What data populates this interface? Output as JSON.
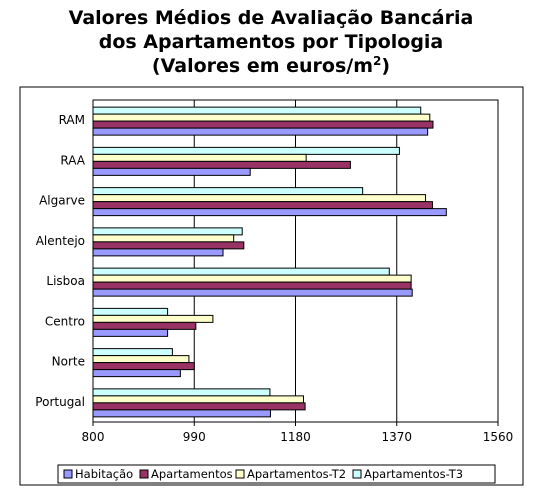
{
  "chart_data": {
    "type": "bar",
    "orientation": "horizontal",
    "title_lines": [
      "Valores Médios de Avaliação Bancária",
      "dos Apartamentos por Tipologia"
    ],
    "title_units_prefix": "(Valores em euros/m",
    "title_units_sup": "2",
    "title_units_suffix": ")",
    "categories": [
      "RAM",
      "RAA",
      "Algarve",
      "Alentejo",
      "Lisboa",
      "Centro",
      "Norte",
      "Portugal"
    ],
    "series": [
      {
        "name": "Habitação",
        "color": "#9999ff",
        "values": [
          1428,
          1095,
          1463,
          1044,
          1399,
          940,
          964,
          1133
        ]
      },
      {
        "name": "Apartamentos",
        "color": "#993366",
        "values": [
          1438,
          1283,
          1437,
          1083,
          1397,
          993,
          990,
          1198
        ]
      },
      {
        "name": "Apartamentos-T2",
        "color": "#ffffcc",
        "values": [
          1432,
          null,
          1424,
          1064,
          1397,
          1025,
          980,
          1195
        ]
      },
      {
        "name": "Apartamentos-T3",
        "color": "#ccffff",
        "values": [
          1415,
          1375,
          1306,
          1080,
          1356,
          940,
          949,
          1132
        ]
      }
    ],
    "xlim": [
      800,
      1560
    ],
    "xticks": [
      800,
      990,
      1180,
      1370,
      1560
    ],
    "xtick_labels": [
      "800",
      "990",
      "1180",
      "1370",
      "1560"
    ],
    "raa_t2_value": 1200,
    "legend_position": "bottom",
    "grid": "vertical"
  }
}
